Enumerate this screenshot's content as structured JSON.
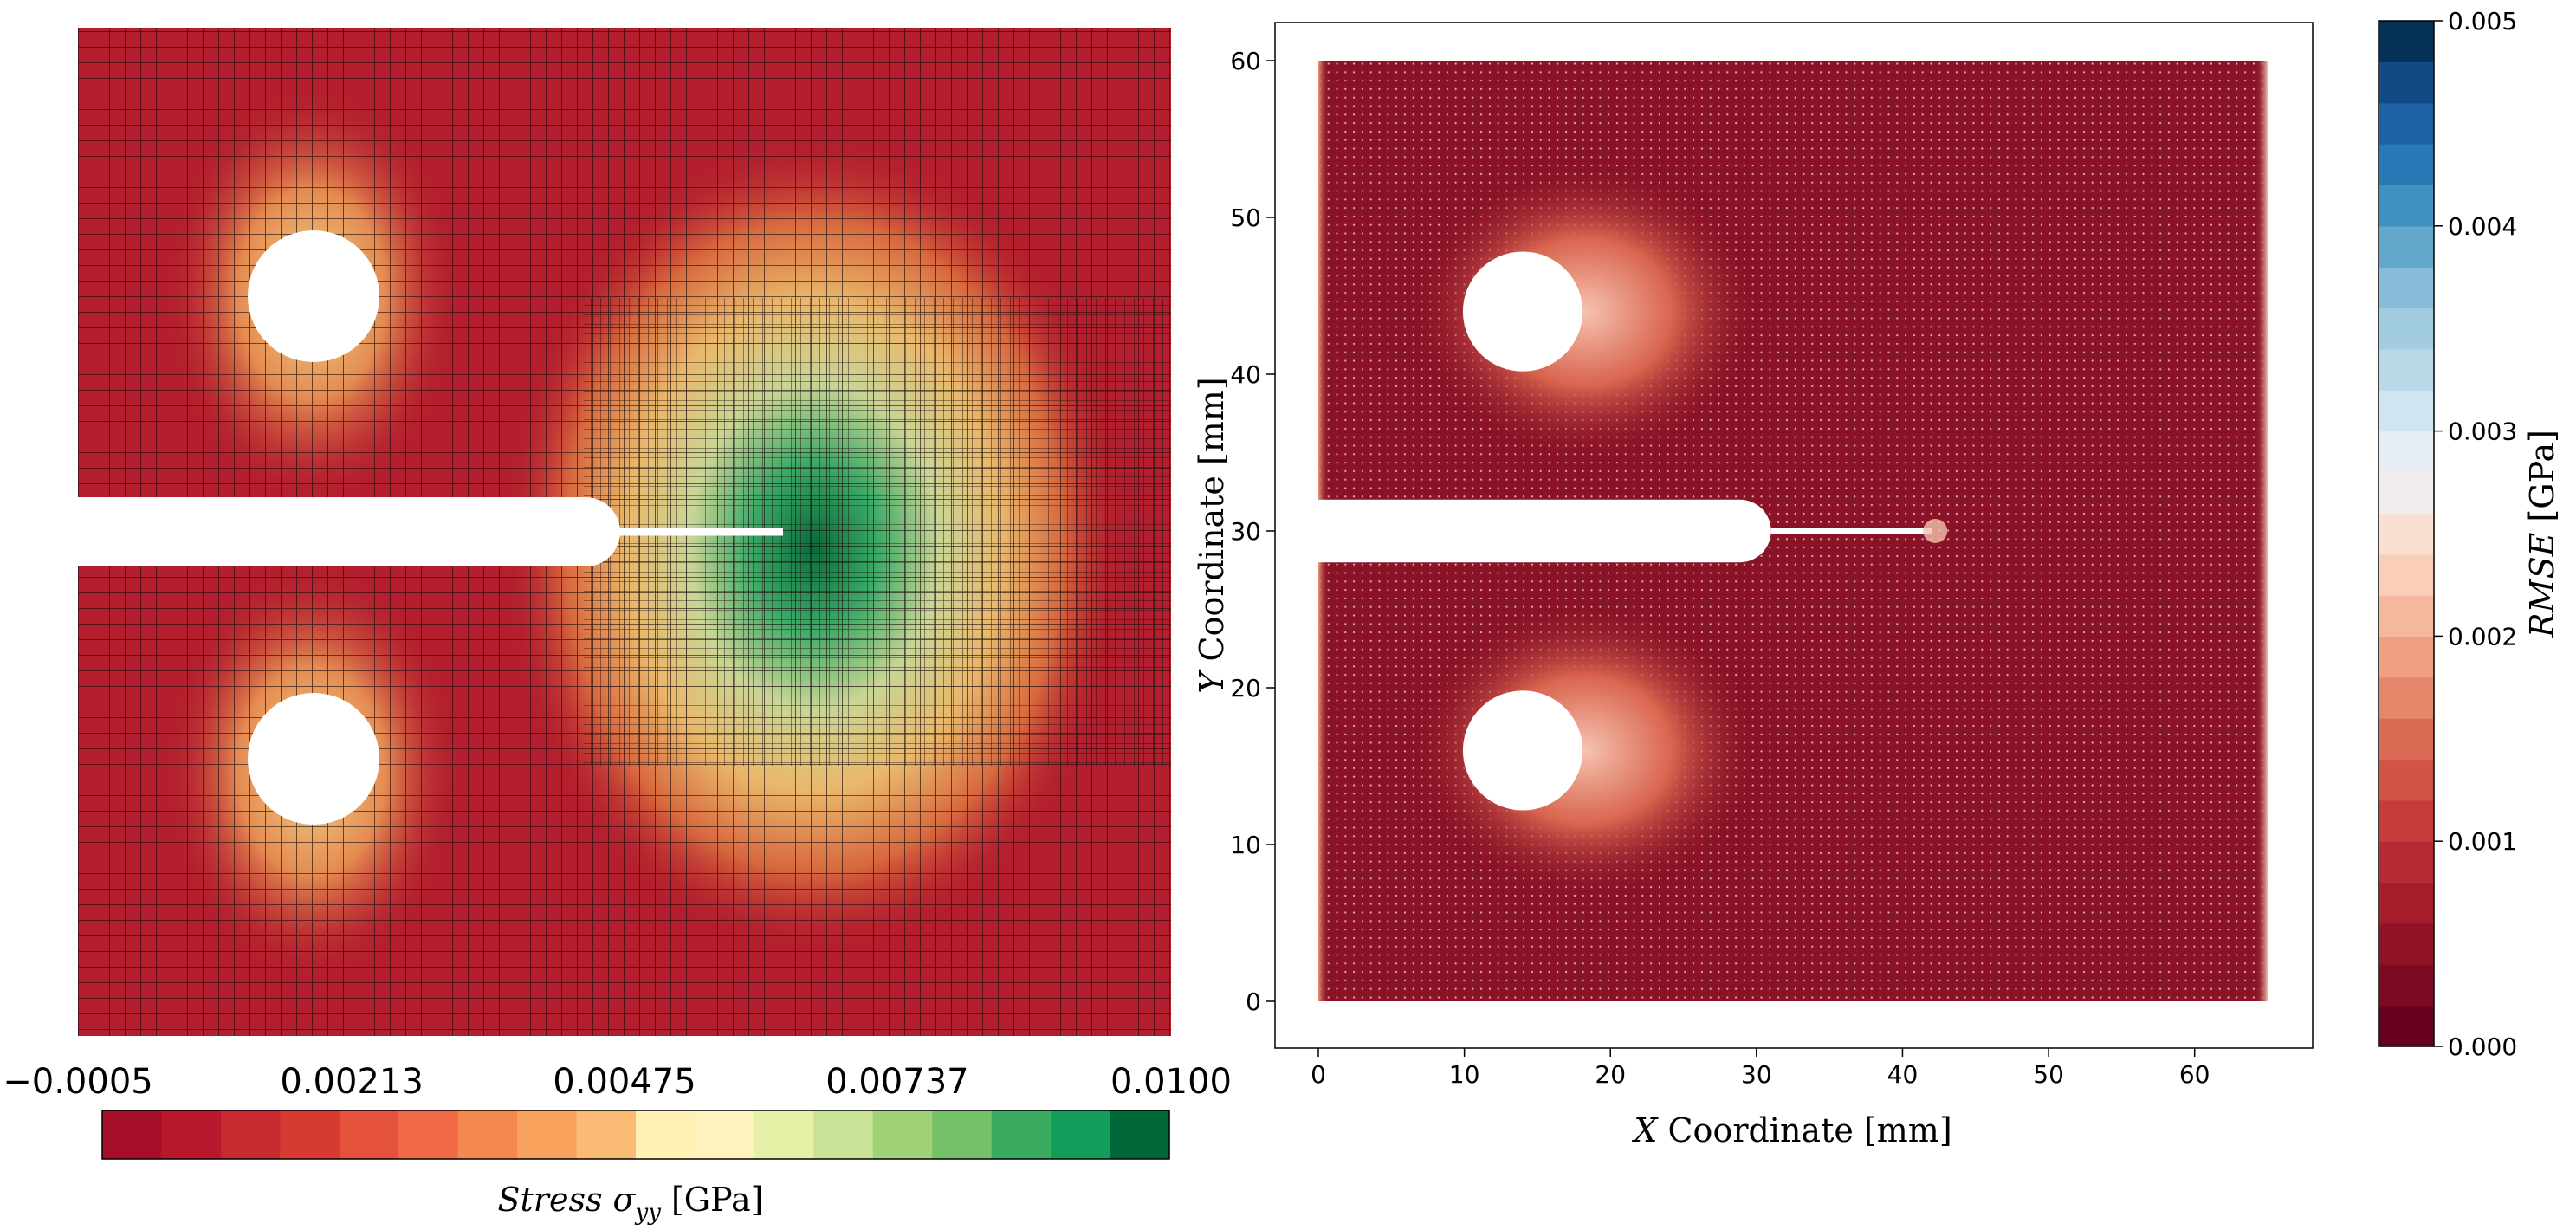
{
  "chart_data": [
    {
      "type": "heatmap",
      "colorbar_label_main": "Stress ",
      "colorbar_label_sym": "σ",
      "colorbar_label_sub": "yy",
      "colorbar_label_unit": " [GPa]",
      "colorbar_ticks": [
        "−0.0005",
        "0.00213",
        "0.00475",
        "0.00737",
        "0.0100"
      ],
      "colorbar_tick_values": [
        -0.0005,
        0.00213,
        0.00475,
        0.00737,
        0.01
      ],
      "clim": [
        -0.0005,
        0.01
      ],
      "colorbar_orientation": "horizontal",
      "colormap": [
        "#a50f28",
        "#b8172d",
        "#c62a2f",
        "#d73a31",
        "#e5523b",
        "#f06a48",
        "#f5884f",
        "#f9a25e",
        "#fbbb75",
        "#fff2b4",
        "#fef3bf",
        "#e6f1a8",
        "#c8e396",
        "#a2d278",
        "#75c16a",
        "#3bab5f",
        "#129d5a",
        "#006837"
      ],
      "features": [
        "two-holes",
        "notch",
        "crack",
        "refined-mesh-region"
      ],
      "peak_region_color": "#0b7a45",
      "background_color": "#b31f2e",
      "grid": true
    },
    {
      "type": "scatter",
      "xlabel_sym": "X",
      "xlabel_text": " Coordinate [mm]",
      "ylabel_sym": "Y",
      "ylabel_text": " Coordinate [mm]",
      "xticks": [
        0,
        10,
        20,
        30,
        40,
        50,
        60
      ],
      "yticks": [
        0,
        10,
        20,
        30,
        40,
        50,
        60
      ],
      "xlim": [
        -3,
        68
      ],
      "ylim": [
        -3,
        63
      ],
      "domain": {
        "x": [
          0,
          65
        ],
        "y": [
          0,
          60
        ]
      },
      "holes": [
        {
          "cx": 14,
          "cy": 44,
          "r": 4.1
        },
        {
          "cx": 14,
          "cy": 16,
          "r": 4.1
        }
      ],
      "notch": {
        "x_end": 31,
        "y_low": 28,
        "y_high": 32
      },
      "crack": {
        "x_start": 31,
        "x_end": 42,
        "y": 30
      },
      "colorbar_label_sym": "RMSE",
      "colorbar_label_unit": " [GPa]",
      "colorbar_ticks": [
        "0.000",
        "0.001",
        "0.002",
        "0.003",
        "0.004",
        "0.005"
      ],
      "colorbar_tick_values": [
        0,
        0.001,
        0.002,
        0.003,
        0.004,
        0.005
      ],
      "clim": [
        0,
        0.005
      ],
      "colormap": [
        "#67001f",
        "#7d0a23",
        "#8f1227",
        "#a51c2b",
        "#b52a33",
        "#c53d3b",
        "#d25447",
        "#dc6b56",
        "#e6866b",
        "#efa081",
        "#f5b89d",
        "#f9cfba",
        "#f9e0d3",
        "#f3ecec",
        "#e6eef3",
        "#d1e5f0",
        "#bbd8e8",
        "#a2cde0",
        "#86bcd7",
        "#63a7ca",
        "#3f92bf",
        "#2879b5",
        "#1d62a3",
        "#114a84",
        "#063157"
      ],
      "background_color": "#8a1226",
      "grid": false
    }
  ]
}
